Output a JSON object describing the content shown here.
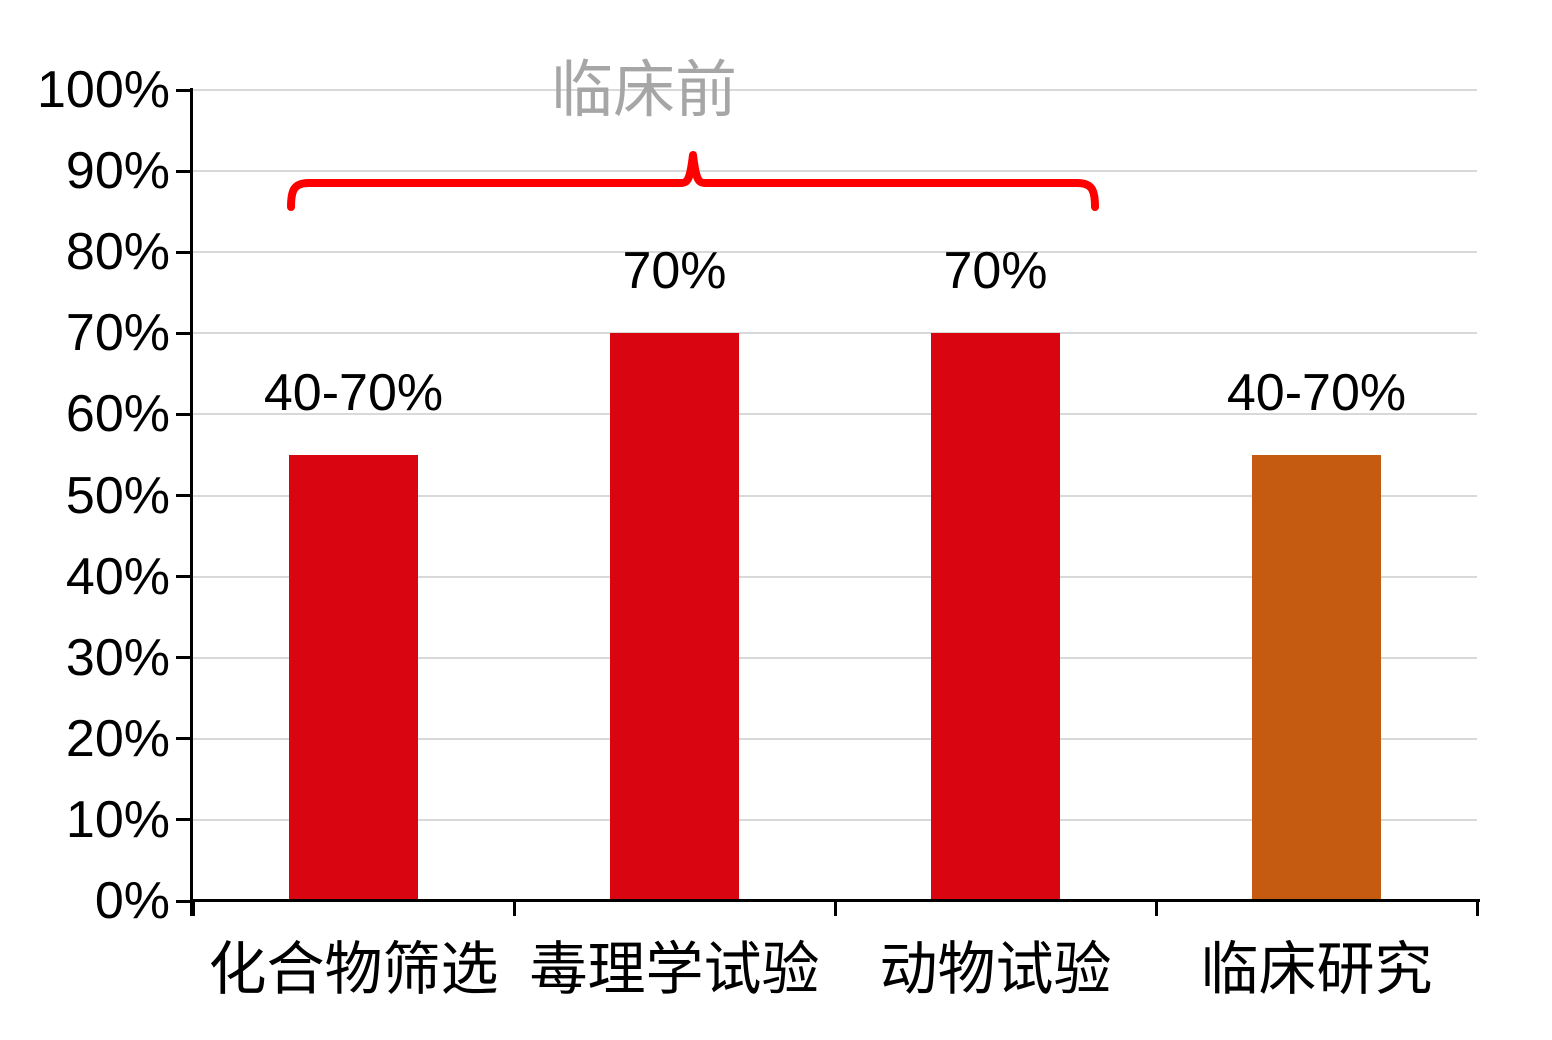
{
  "chart_data": {
    "type": "bar",
    "title": "",
    "xlabel": "",
    "ylabel": "",
    "categories": [
      "化合物筛选",
      "毒理学试验",
      "动物试验",
      "临床研究"
    ],
    "values": [
      55,
      70,
      70,
      55
    ],
    "data_labels": [
      "40-70%",
      "70%",
      "70%",
      "40-70%"
    ],
    "bar_colors": [
      "#D90612",
      "#D90612",
      "#D90612",
      "#C55A11"
    ],
    "ylim": [
      0,
      100
    ],
    "y_ticks": [
      0,
      10,
      20,
      30,
      40,
      50,
      60,
      70,
      80,
      90,
      100
    ],
    "y_tick_labels": [
      "0%",
      "10%",
      "20%",
      "30%",
      "40%",
      "50%",
      "60%",
      "70%",
      "80%",
      "90%",
      "100%"
    ],
    "grid": "horizontal",
    "legend": "none",
    "axis_color": "#000000",
    "gridline_color": "#D9D9D9",
    "annotation": {
      "label": "临床前",
      "span_categories": [
        "化合物筛选",
        "毒理学试验",
        "动物试验"
      ],
      "brace_color": "#FF0000",
      "label_color": "#A6A6A6"
    }
  }
}
